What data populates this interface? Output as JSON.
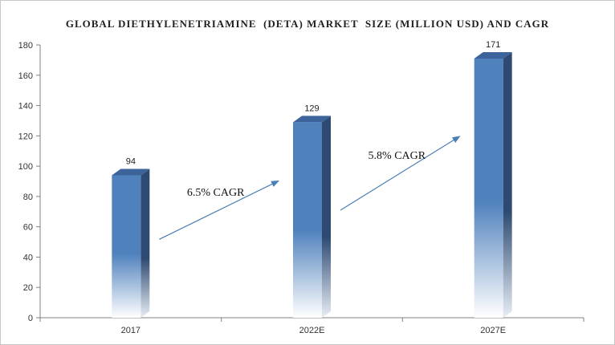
{
  "chart_data": {
    "type": "bar",
    "title": "GLOBAL DIETHYLENETRIAMINE  (DETA) MARKET  SIZE (MILLION USD) AND CAGR",
    "xlabel": "",
    "ylabel": "",
    "categories": [
      "2017",
      "2022E",
      "2027E"
    ],
    "values": [
      94,
      129,
      171
    ],
    "data_labels": [
      "94",
      "129",
      "171"
    ],
    "ylim": [
      0,
      180
    ],
    "yticks": [
      "0",
      "20",
      "40",
      "60",
      "80",
      "100",
      "120",
      "140",
      "160",
      "180"
    ],
    "grid": false,
    "legend": "none",
    "bar_style": "3d-gradient",
    "bar_color": "#4f81bd",
    "bar_side_color": "#2e4a72",
    "bar_top_color": "#3d649a",
    "arrow_color": "#4a7fb5",
    "annotations": [
      {
        "text": "6.5% CAGR",
        "from_category": "2017",
        "to_category": "2022E"
      },
      {
        "text": "5.8% CAGR",
        "from_category": "2022E",
        "to_category": "2027E"
      }
    ]
  }
}
